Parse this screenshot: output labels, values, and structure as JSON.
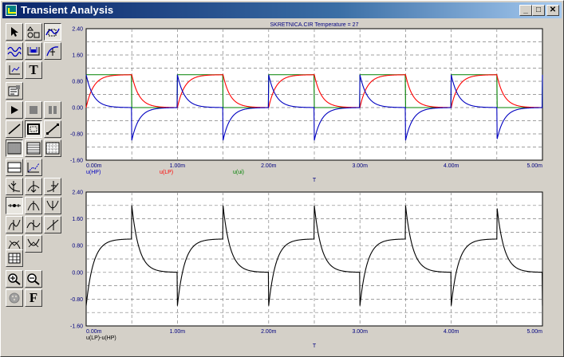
{
  "window": {
    "title": "Transient Analysis",
    "minimize_glyph": "_",
    "maximize_glyph": "□",
    "close_glyph": "✕"
  },
  "toolbar": {
    "tools": [
      {
        "name": "select-arrow-icon"
      },
      {
        "name": "shapes-icon"
      },
      {
        "name": "curve-zoom-icon"
      },
      {
        "name": "waveform-icon"
      },
      {
        "name": "scale-icon"
      },
      {
        "name": "cursor-curve-icon"
      },
      {
        "name": "axis-icon"
      },
      {
        "name": "text-tool",
        "label": "T"
      },
      {
        "name": "properties-icon"
      },
      {
        "name": "run-icon"
      },
      {
        "name": "stop-icon"
      },
      {
        "name": "pause-icon"
      },
      {
        "name": "line-icon"
      },
      {
        "name": "frame-icon"
      },
      {
        "name": "diagonal-icon"
      },
      {
        "name": "grid-dense-icon"
      },
      {
        "name": "grid-medium-icon"
      },
      {
        "name": "grid-sparse-icon"
      },
      {
        "name": "panel-icon"
      },
      {
        "name": "xy-plot-icon"
      },
      {
        "name": "cursor-left-icon"
      },
      {
        "name": "cursor-mid-icon"
      },
      {
        "name": "cursor-right-icon"
      },
      {
        "name": "peak-icon"
      },
      {
        "name": "peak-up-icon"
      },
      {
        "name": "valley-icon"
      },
      {
        "name": "inflection-icon"
      },
      {
        "name": "wave-icon"
      },
      {
        "name": "slope-icon"
      },
      {
        "name": "max-icon"
      },
      {
        "name": "min-icon"
      },
      {
        "name": "table-icon"
      },
      {
        "name": "zoom-in-icon"
      },
      {
        "name": "zoom-out-icon"
      },
      {
        "name": "palette-icon"
      },
      {
        "name": "font-tool",
        "label": "F"
      }
    ]
  },
  "colors": {
    "plot_bg": "#ffffff",
    "grid": "#808080",
    "axis_text": "#000080",
    "hp": "#0000c0",
    "lp": "#ff0000",
    "ui": "#008000",
    "diff": "#000000"
  },
  "chart_data": [
    {
      "type": "line",
      "title": "SKRETNICA.CIR Temperature = 27",
      "xlabel": "T",
      "ylabel": "",
      "xlim": [
        0,
        0.005
      ],
      "ylim": [
        -1.6,
        2.4
      ],
      "x_ticks": [
        "0.00m",
        "1.00m",
        "2.00m",
        "3.00m",
        "4.00m",
        "5.00m"
      ],
      "y_ticks": [
        "2.40",
        "1.60",
        "0.80",
        "0.00",
        "-0.80",
        "-1.60"
      ],
      "series": [
        {
          "name": "u(HP)",
          "color": "#0000c0",
          "description_shape": "high-pass response of 1 V square wave, 1 ms period",
          "peak": 1.0,
          "trough": -1.0
        },
        {
          "name": "u(LP)",
          "color": "#ff0000",
          "description_shape": "low-pass response rising to 1 V",
          "peak": 1.0,
          "trough": 0.0
        },
        {
          "name": "u(ui)",
          "color": "#008000",
          "description_shape": "square wave 0 to 1 V, 50% duty, 1 ms period",
          "peak": 1.0,
          "trough": 0.0
        }
      ],
      "period_s": 0.001,
      "duty": 0.5,
      "tau_s": 8e-05
    },
    {
      "type": "line",
      "title": "",
      "xlabel": "T",
      "ylabel": "",
      "xlim": [
        0,
        0.005
      ],
      "ylim": [
        -1.6,
        2.4
      ],
      "x_ticks": [
        "0.00m",
        "1.00m",
        "2.00m",
        "3.00m",
        "4.00m",
        "5.00m"
      ],
      "y_ticks": [
        "2.40",
        "1.60",
        "0.80",
        "0.00",
        "-0.80",
        "-1.60"
      ],
      "series": [
        {
          "name": "u(LP)-u(HP)",
          "color": "#000000",
          "peak": 2.0,
          "trough": -1.0
        }
      ],
      "period_s": 0.001,
      "duty": 0.5,
      "tau_s": 8e-05
    }
  ]
}
